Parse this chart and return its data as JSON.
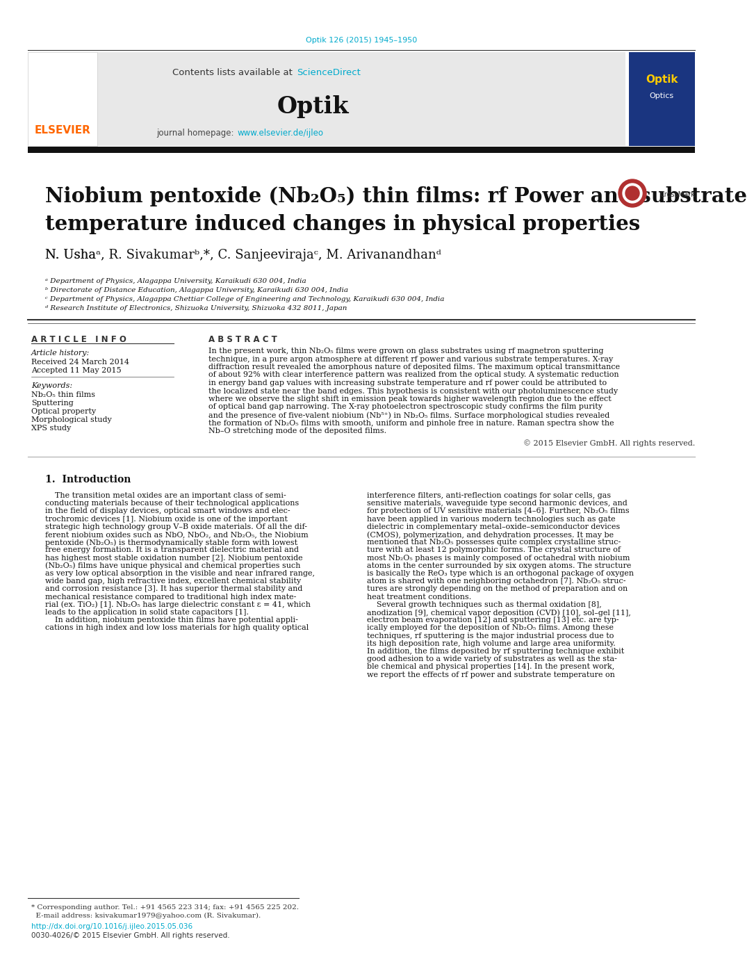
{
  "page_bg": "#ffffff",
  "top_url": "Optik 126 (2015) 1945–1950",
  "top_url_color": "#00aacc",
  "header_bg": "#e8e8e8",
  "header_text": "Contents lists available at ",
  "header_sciencedirect": "ScienceDirect",
  "header_sciencedirect_color": "#00aacc",
  "journal_name": "Optik",
  "journal_homepage_text": "journal homepage: ",
  "journal_homepage_url": "www.elsevier.de/ijleo",
  "journal_homepage_url_color": "#00aacc",
  "elsevier_color": "#ff6600",
  "dark_bar_color": "#111111",
  "title_line1": "Niobium pentoxide (Nb₂O₅) thin films: rf Power and substrate",
  "title_line2": "temperature induced changes in physical properties",
  "title_fontsize": 21,
  "authors": "N. Ushaᵃ, R. Sivakumarᵇ,*, C. Sanjeevirajaᶜ, M. Arivanandhanᵈ",
  "authors_fontsize": 13,
  "affil_a": "ᵃ Department of Physics, Alagappa University, Karaikudi 630 004, India",
  "affil_b": "ᵇ Directorate of Distance Education, Alagappa University, Karaikudi 630 004, India",
  "affil_c": "ᶜ Department of Physics, Alagappa Chettiar College of Engineering and Technology, Karaikudi 630 004, India",
  "affil_d": "ᵈ Research Institute of Electronics, Shizuoka University, Shizuoka 432 8011, Japan",
  "affil_fontsize": 7.5,
  "article_info_header": "A R T I C L E   I N F O",
  "abstract_header": "A B S T R A C T",
  "section_header_fontsize": 8.5,
  "article_history_label": "Article history:",
  "received": "Received 24 March 2014",
  "accepted": "Accepted 11 May 2015",
  "keywords_label": "Keywords:",
  "keyword1": "Nb₂O₅ thin films",
  "keyword2": "Sputtering",
  "keyword3": "Optical property",
  "keyword4": "Morphological study",
  "keyword5": "XPS study",
  "copyright": "© 2015 Elsevier GmbH. All rights reserved.",
  "intro_header": "1.  Introduction",
  "doi_text": "http://dx.doi.org/10.1016/j.ijleo.2015.05.036",
  "issn_text": "0030-4026/© 2015 Elsevier GmbH. All rights reserved."
}
